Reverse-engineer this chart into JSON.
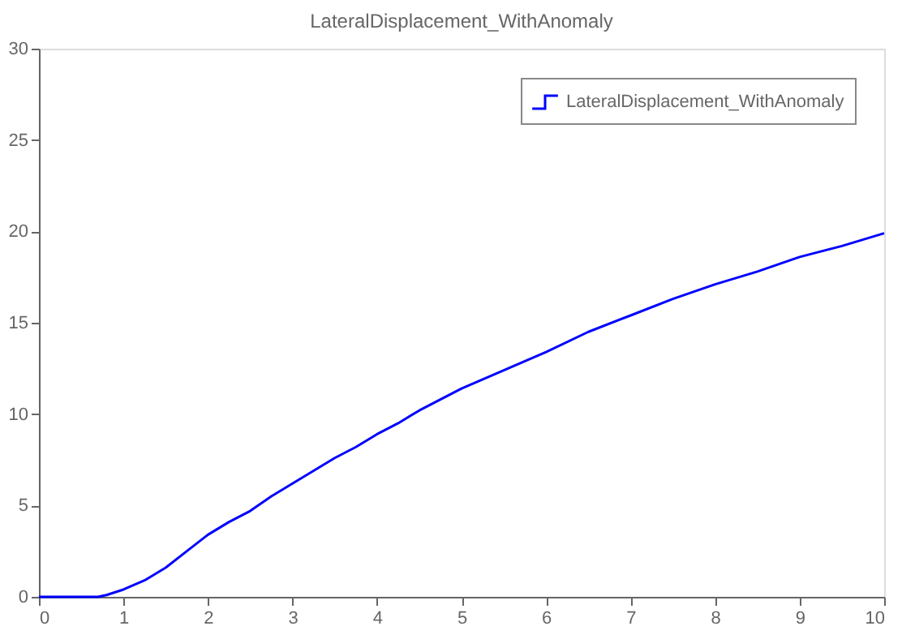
{
  "chart_data": {
    "type": "line",
    "title": "LateralDisplacement_WithAnomaly",
    "x": [
      0,
      0.7,
      0.8,
      1,
      1.25,
      1.5,
      1.75,
      2,
      2.25,
      2.5,
      2.75,
      3,
      3.25,
      3.5,
      3.75,
      4,
      4.25,
      4.5,
      4.75,
      5,
      5.5,
      6,
      6.5,
      7,
      7.5,
      8,
      8.5,
      9,
      9.5,
      10
    ],
    "series": [
      {
        "name": "LateralDisplacement_WithAnomaly",
        "color": "#0000ff",
        "values": [
          0,
          0,
          0.1,
          0.4,
          0.9,
          1.6,
          2.5,
          3.4,
          4.1,
          4.7,
          5.5,
          6.2,
          6.9,
          7.6,
          8.2,
          8.9,
          9.5,
          10.2,
          10.8,
          11.4,
          12.4,
          13.4,
          14.5,
          15.4,
          16.3,
          17.1,
          17.8,
          18.6,
          19.2,
          19.9
        ]
      }
    ],
    "xlim": [
      0,
      10
    ],
    "xticks": [
      0,
      1,
      2,
      3,
      4,
      5,
      6,
      7,
      8,
      9,
      10
    ],
    "ylim": [
      0,
      30
    ],
    "yticks": [
      0,
      5,
      10,
      15,
      20,
      25,
      30
    ],
    "grid": false,
    "legend": "top right",
    "marker": "none",
    "line_style": "solid"
  }
}
